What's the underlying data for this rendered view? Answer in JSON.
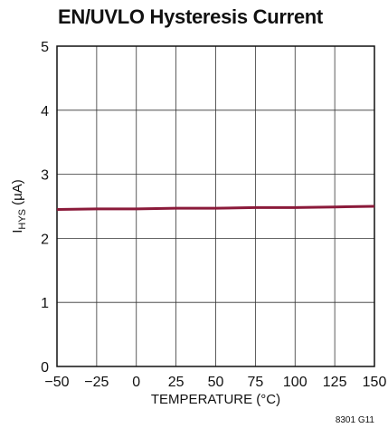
{
  "chart_data": {
    "type": "line",
    "title": "EN/UVLO Hysteresis Current",
    "xlabel": "TEMPERATURE (°C)",
    "ylabel_main": "I",
    "ylabel_sub": "HYS",
    "ylabel_unit": " (µA)",
    "xlim": [
      -50,
      150
    ],
    "ylim": [
      0,
      5
    ],
    "xticks": [
      "−50",
      "−25",
      "0",
      "25",
      "50",
      "75",
      "100",
      "125",
      "150"
    ],
    "xtick_values": [
      -50,
      -25,
      0,
      25,
      50,
      75,
      100,
      125,
      150
    ],
    "yticks": [
      "0",
      "1",
      "2",
      "3",
      "4",
      "5"
    ],
    "ytick_values": [
      0,
      1,
      2,
      3,
      4,
      5
    ],
    "grid": true,
    "line_color": "#8b1a3a",
    "series": [
      {
        "x": [
          -50,
          -25,
          0,
          25,
          50,
          75,
          100,
          125,
          150
        ],
        "y": [
          2.45,
          2.46,
          2.46,
          2.47,
          2.47,
          2.48,
          2.48,
          2.49,
          2.5
        ]
      }
    ],
    "figure_id": "8301 G11"
  }
}
